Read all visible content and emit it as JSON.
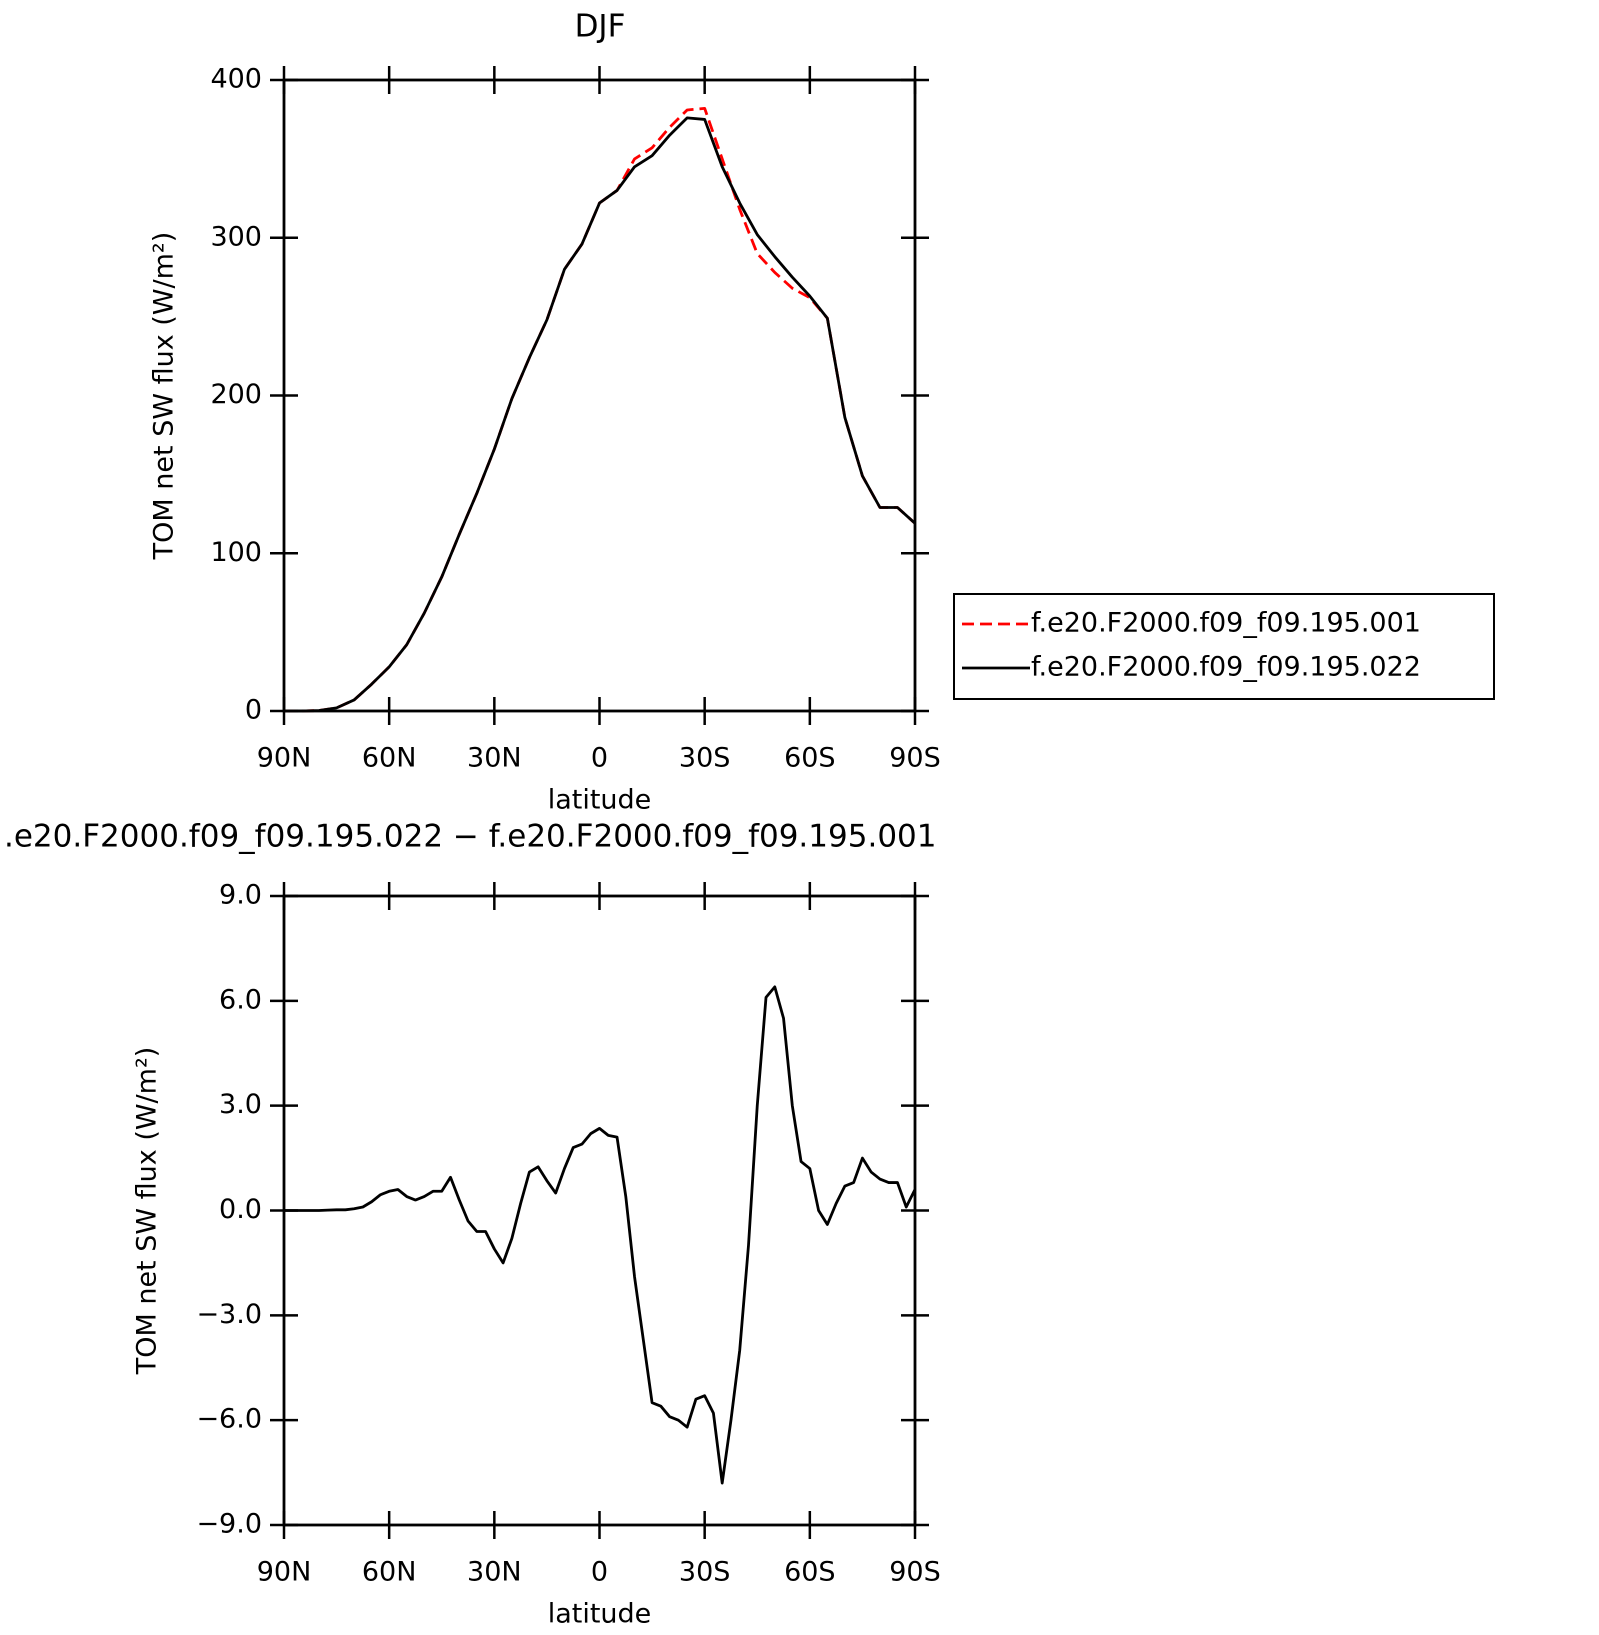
{
  "chart_data": [
    {
      "type": "line",
      "title": "DJF",
      "xlabel": "latitude",
      "ylabel": "TOM net SW flux (W/m²)",
      "x": [
        90,
        85,
        80,
        75,
        70,
        65,
        60,
        55,
        50,
        45,
        40,
        35,
        30,
        25,
        20,
        15,
        10,
        5,
        0,
        -5,
        -10,
        -15,
        -20,
        -25,
        -30,
        -35,
        -40,
        -45,
        -50,
        -55,
        -60,
        -65,
        -70,
        -75,
        -80,
        -85,
        -90
      ],
      "series": [
        {
          "name": "f.e20.F2000.f09_f09.195.001",
          "color": "#ff0000",
          "style": "dashed",
          "values": [
            0,
            0,
            0.3,
            2,
            7,
            17,
            28,
            42,
            62,
            85,
            112,
            138,
            166,
            198,
            224,
            248,
            280,
            296,
            322,
            330,
            350,
            357,
            370,
            381,
            382,
            350,
            318,
            290,
            278,
            268,
            262,
            249,
            186,
            149,
            129,
            129,
            119
          ]
        },
        {
          "name": "f.e20.F2000.f09_f09.195.022",
          "color": "#000000",
          "style": "solid",
          "values": [
            0,
            0,
            0.3,
            2,
            7,
            17,
            28,
            42,
            62,
            85,
            112,
            138,
            166,
            198,
            224,
            248,
            280,
            296,
            322,
            330,
            345,
            352,
            365,
            376,
            375,
            345,
            322,
            302,
            288,
            275,
            263,
            249,
            186,
            149,
            129,
            129,
            119
          ]
        }
      ],
      "xlim": [
        90,
        -90
      ],
      "xticks": [
        {
          "value": 90,
          "label": "90N"
        },
        {
          "value": 60,
          "label": "60N"
        },
        {
          "value": 30,
          "label": "30N"
        },
        0,
        {
          "value": -30,
          "label": "30S"
        },
        {
          "value": -60,
          "label": "60S"
        },
        {
          "value": -90,
          "label": "90S"
        }
      ],
      "ylim": [
        0,
        400
      ],
      "yticks": [
        0,
        100,
        200,
        300,
        400
      ],
      "legend": "right"
    },
    {
      "type": "line",
      "title": ".e20.F2000.f09_f09.195.022 − f.e20.F2000.f09_f09.195.001",
      "xlabel": "latitude",
      "ylabel": "TOM net SW flux (W/m²)",
      "x": [
        90,
        87.5,
        85,
        82.5,
        80,
        77.5,
        75,
        72.5,
        70,
        67.5,
        65,
        62.5,
        60,
        57.5,
        55,
        52.5,
        50,
        47.5,
        45,
        42.5,
        40,
        37.5,
        35,
        32.5,
        30,
        27.5,
        25,
        22.5,
        20,
        17.5,
        15,
        12.5,
        10,
        7.5,
        5,
        2.5,
        0,
        -2.5,
        -5,
        -7.5,
        -10,
        -12.5,
        -15,
        -17.5,
        -20,
        -22.5,
        -25,
        -27.5,
        -30,
        -32.5,
        -35,
        -37.5,
        -40,
        -42.5,
        -45,
        -47.5,
        -50,
        -52.5,
        -55,
        -57.5,
        -60,
        -62.5,
        -65,
        -67.5,
        -70,
        -72.5,
        -75,
        -77.5,
        -80,
        -82.5,
        -85,
        -87.5,
        -90
      ],
      "values": [
        0,
        0,
        0,
        0,
        0,
        0.01,
        0.02,
        0.02,
        0.05,
        0.1,
        0.25,
        0.45,
        0.55,
        0.6,
        0.4,
        0.3,
        0.4,
        0.55,
        0.55,
        0.95,
        0.3,
        -0.3,
        -0.6,
        -0.6,
        -1.1,
        -1.5,
        -0.8,
        0.2,
        1.1,
        1.25,
        0.85,
        0.5,
        1.2,
        1.8,
        1.9,
        2.2,
        2.35,
        2.15,
        2.1,
        0.4,
        -1.9,
        -3.7,
        -5.5,
        -5.6,
        -5.9,
        -6.0,
        -6.2,
        -5.4,
        -5.3,
        -5.8,
        -7.8,
        -6.0,
        -4.0,
        -1.0,
        3.0,
        6.1,
        6.4,
        5.5,
        3.0,
        1.4,
        1.2,
        0.0,
        -0.4,
        0.2,
        0.7,
        0.8,
        1.5,
        1.1,
        0.9,
        0.8,
        0.8,
        0.1,
        0.6
      ],
      "color": "#000000",
      "style": "solid",
      "xlim": [
        90,
        -90
      ],
      "xticks": [
        {
          "value": 90,
          "label": "90N"
        },
        {
          "value": 60,
          "label": "60N"
        },
        {
          "value": 30,
          "label": "30N"
        },
        0,
        {
          "value": -30,
          "label": "30S"
        },
        {
          "value": -60,
          "label": "60S"
        },
        {
          "value": -90,
          "label": "90S"
        }
      ],
      "ylim": [
        -9,
        9
      ],
      "yticks": [
        {
          "value": -9,
          "label": "−9.0"
        },
        {
          "value": -6,
          "label": "−6.0"
        },
        {
          "value": -3,
          "label": "−3.0"
        },
        {
          "value": 0,
          "label": "0.0"
        },
        {
          "value": 3,
          "label": "3.0"
        },
        {
          "value": 6,
          "label": "6.0"
        },
        {
          "value": 9,
          "label": "9.0"
        }
      ]
    }
  ]
}
